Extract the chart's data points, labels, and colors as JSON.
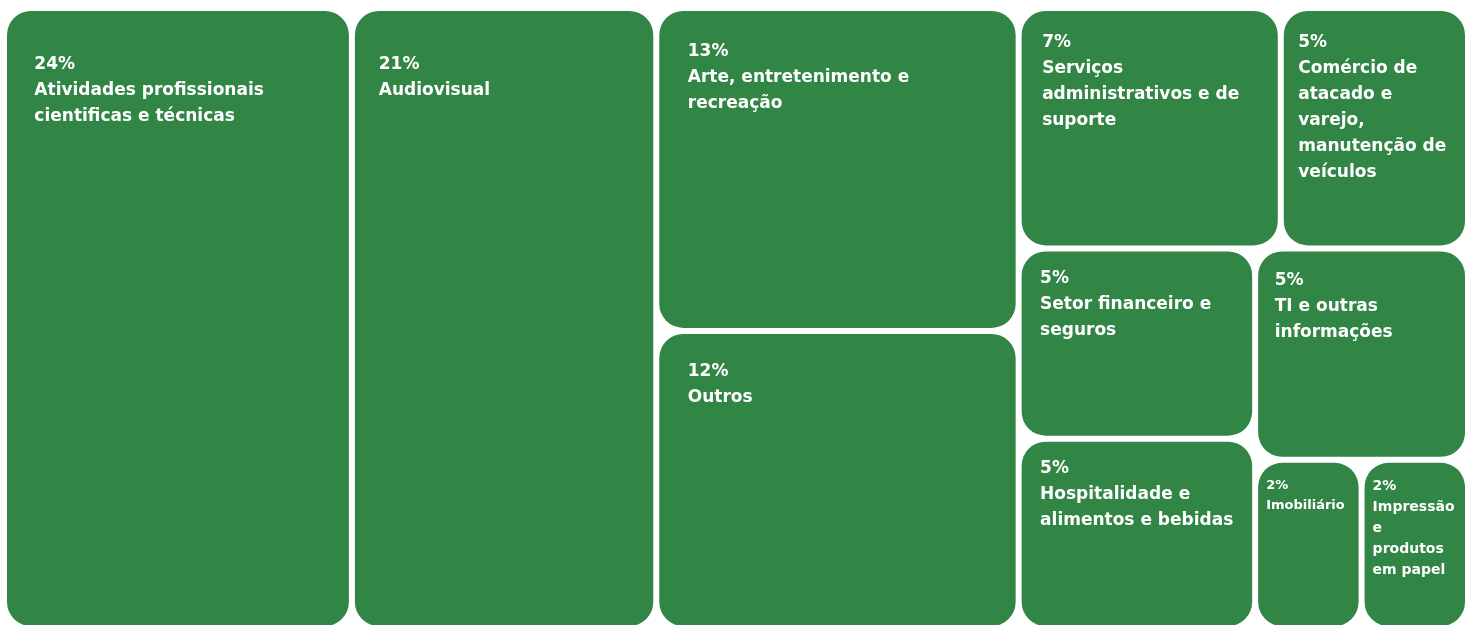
{
  "chart_data": {
    "type": "other",
    "categories": [
      "Atividades profissionais cientificas e técnicas",
      "Audiovisual",
      "Arte, entretenimento e recreação",
      "Outros",
      "Serviços administrativos e de suporte",
      "Comércio de atacado e varejo, manutenção de veículos",
      "Setor financeiro e seguros",
      "Hospitalidade e alimentos e bebidas",
      "TI e outras informações",
      "Imobiliário",
      "Impressão e produtos em papel"
    ],
    "values": [
      24,
      21,
      13,
      12,
      7,
      5,
      5,
      5,
      5,
      2,
      2
    ],
    "value_labels": [
      "24%",
      "21%",
      "13%",
      "12%",
      "7%",
      "5%",
      "5%",
      "5%",
      "5%",
      "2%",
      "2%"
    ],
    "color": "#318545"
  }
}
